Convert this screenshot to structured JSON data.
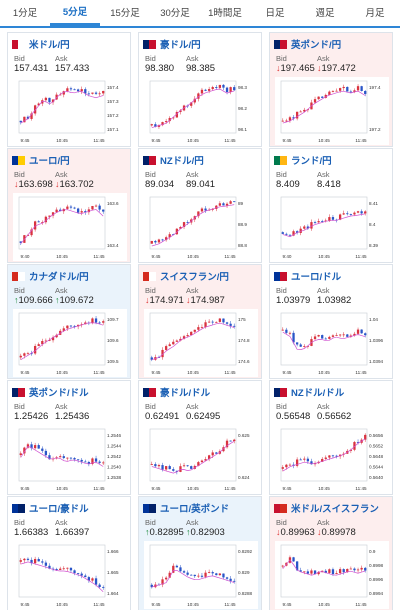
{
  "tabs": [
    "1分足",
    "5分足",
    "15分足",
    "30分足",
    "1時間足",
    "日足",
    "週足",
    "月足"
  ],
  "active_tab": 1,
  "labels": {
    "bid": "Bid",
    "ask": "Ask"
  },
  "colors": {
    "accent": "#2e86d6",
    "up": "#1a8a3a",
    "down": "#d33333",
    "candle_up": "#d9333f",
    "candle_down": "#2a55c8",
    "ma_line": "#d050d0"
  },
  "cards": [
    {
      "pair": "米ドル/円",
      "flags": [
        "#c8102e",
        "#ffffff"
      ],
      "bid": "157.431",
      "ask": "157.433",
      "dir": "",
      "bg": "",
      "x_ticks": [
        "9:45",
        "10:45",
        "11:45"
      ],
      "y_ticks": [
        "157.4",
        "157.3",
        "157.2",
        "157.1"
      ],
      "trend": [
        0.2,
        0.3,
        0.5,
        0.7,
        0.6,
        0.8,
        0.9,
        0.85,
        0.9,
        0.8,
        0.75,
        0.8
      ]
    },
    {
      "pair": "豪ドル/円",
      "flags": [
        "#012169",
        "#c8102e"
      ],
      "bid": "98.380",
      "ask": "98.385",
      "dir": "",
      "bg": "",
      "x_ticks": [
        "9:45",
        "10:45",
        "11:45"
      ],
      "y_ticks": [
        "98.3",
        "98.2",
        "98.1"
      ],
      "trend": [
        0.1,
        0.15,
        0.2,
        0.35,
        0.5,
        0.6,
        0.75,
        0.85,
        0.9,
        0.95,
        0.85,
        0.9
      ]
    },
    {
      "pair": "英ポンド/円",
      "flags": [
        "#012169",
        "#c8102e"
      ],
      "bid": "197.465",
      "ask": "197.472",
      "dir": "down",
      "bg": "red",
      "x_ticks": [
        "9:45",
        "10:45",
        "11:45"
      ],
      "y_ticks": [
        "197.4",
        "197.2"
      ],
      "trend": [
        0.2,
        0.25,
        0.35,
        0.45,
        0.6,
        0.7,
        0.8,
        0.85,
        0.9,
        0.85,
        0.9,
        0.8
      ]
    },
    {
      "pair": "ユーロ/円",
      "flags": [
        "#003399",
        "#ffcc00"
      ],
      "bid": "163.698",
      "ask": "163.702",
      "dir": "down",
      "bg": "red",
      "x_ticks": [
        "9:40",
        "10:45",
        "11:45"
      ],
      "y_ticks": [
        "163.6",
        "163.4"
      ],
      "trend": [
        0.1,
        0.3,
        0.5,
        0.55,
        0.7,
        0.8,
        0.85,
        0.8,
        0.75,
        0.8,
        0.85,
        0.7
      ]
    },
    {
      "pair": "NZドル/円",
      "flags": [
        "#012169",
        "#c8102e"
      ],
      "bid": "89.034",
      "ask": "89.041",
      "dir": "",
      "bg": "",
      "x_ticks": [
        "9:45",
        "10:45",
        "11:45"
      ],
      "y_ticks": [
        "89",
        "88.9",
        "88.8"
      ],
      "trend": [
        0.05,
        0.1,
        0.2,
        0.3,
        0.45,
        0.55,
        0.7,
        0.8,
        0.85,
        0.9,
        0.92,
        0.95
      ]
    },
    {
      "pair": "ランド/円",
      "flags": [
        "#007a4d",
        "#ffb612"
      ],
      "bid": "8.409",
      "ask": "8.418",
      "dir": "",
      "bg": "",
      "x_ticks": [
        "9:40",
        "10:45",
        "11:45"
      ],
      "y_ticks": [
        "8.41",
        "8.4",
        "8.39"
      ],
      "trend": [
        0.3,
        0.25,
        0.35,
        0.4,
        0.5,
        0.55,
        0.6,
        0.6,
        0.65,
        0.7,
        0.72,
        0.75
      ]
    },
    {
      "pair": "カナダドル/円",
      "flags": [
        "#d52b1e",
        "#ffffff"
      ],
      "bid": "109.666",
      "ask": "109.672",
      "dir": "up",
      "bg": "blue",
      "x_ticks": [
        "9:45",
        "10:45",
        "11:45"
      ],
      "y_ticks": [
        "109.7",
        "109.6",
        "109.5"
      ],
      "trend": [
        0.1,
        0.2,
        0.3,
        0.45,
        0.55,
        0.65,
        0.75,
        0.8,
        0.85,
        0.9,
        0.9,
        0.85
      ]
    },
    {
      "pair": "スイスフラン/円",
      "flags": [
        "#d52b1e",
        "#ffffff"
      ],
      "bid": "174.971",
      "ask": "174.987",
      "dir": "down",
      "bg": "red",
      "x_ticks": [
        "9:45",
        "10:45",
        "11:45"
      ],
      "y_ticks": [
        "175",
        "174.8",
        "174.6"
      ],
      "trend": [
        0.1,
        0.15,
        0.3,
        0.4,
        0.55,
        0.6,
        0.7,
        0.8,
        0.85,
        0.9,
        0.85,
        0.8
      ]
    },
    {
      "pair": "ユーロ/ドル",
      "flags": [
        "#003399",
        "#c8102e"
      ],
      "bid": "1.03979",
      "ask": "1.03982",
      "dir": "",
      "bg": "",
      "x_ticks": [
        "9:45",
        "10:45",
        "11:45"
      ],
      "y_ticks": [
        "1.04",
        "1.0396",
        "1.0394"
      ],
      "trend": [
        0.7,
        0.6,
        0.3,
        0.35,
        0.5,
        0.55,
        0.5,
        0.6,
        0.55,
        0.6,
        0.65,
        0.6
      ]
    },
    {
      "pair": "英ポンド/ドル",
      "flags": [
        "#012169",
        "#c8102e"
      ],
      "bid": "1.25426",
      "ask": "1.25436",
      "dir": "",
      "bg": "",
      "x_ticks": [
        "9:45",
        "10:45",
        "11:45"
      ],
      "y_ticks": [
        "1.2546",
        "1.2544",
        "1.2542",
        "1.2540",
        "1.2538"
      ],
      "trend": [
        0.5,
        0.75,
        0.65,
        0.55,
        0.45,
        0.5,
        0.4,
        0.45,
        0.4,
        0.35,
        0.4,
        0.3
      ]
    },
    {
      "pair": "豪ドル/ドル",
      "flags": [
        "#012169",
        "#c8102e"
      ],
      "bid": "0.62491",
      "ask": "0.62495",
      "dir": "",
      "bg": "",
      "x_ticks": [
        "9:45",
        "10:45",
        "11:45"
      ],
      "y_ticks": [
        "0.625",
        "0.624"
      ],
      "trend": [
        0.3,
        0.25,
        0.2,
        0.15,
        0.25,
        0.2,
        0.3,
        0.4,
        0.5,
        0.6,
        0.75,
        0.85
      ]
    },
    {
      "pair": "NZドル/ドル",
      "flags": [
        "#012169",
        "#c8102e"
      ],
      "bid": "0.56548",
      "ask": "0.56562",
      "dir": "",
      "bg": "",
      "x_ticks": [
        "9:45",
        "10:45",
        "11:45"
      ],
      "y_ticks": [
        "0.5656",
        "0.5652",
        "0.5648",
        "0.5644",
        "0.5640"
      ],
      "trend": [
        0.2,
        0.3,
        0.35,
        0.4,
        0.35,
        0.4,
        0.45,
        0.5,
        0.55,
        0.65,
        0.8,
        0.9
      ]
    },
    {
      "pair": "ユーロ/豪ドル",
      "flags": [
        "#003399",
        "#012169"
      ],
      "bid": "1.66383",
      "ask": "1.66397",
      "dir": "",
      "bg": "",
      "x_ticks": [
        "9:45",
        "10:45",
        "11:45"
      ],
      "y_ticks": [
        "1.666",
        "1.665",
        "1.664"
      ],
      "trend": [
        0.7,
        0.75,
        0.7,
        0.65,
        0.6,
        0.55,
        0.55,
        0.5,
        0.45,
        0.35,
        0.25,
        0.1
      ]
    },
    {
      "pair": "ユーロ/英ポンド",
      "flags": [
        "#003399",
        "#012169"
      ],
      "bid": "0.82895",
      "ask": "0.82903",
      "dir": "up",
      "bg": "blue",
      "x_ticks": [
        "9:45",
        "10:45",
        "11:45"
      ],
      "y_ticks": [
        "0.8292",
        "0.829",
        "0.8288"
      ],
      "trend": [
        0.2,
        0.25,
        0.3,
        0.6,
        0.5,
        0.4,
        0.35,
        0.4,
        0.45,
        0.4,
        0.35,
        0.3
      ]
    },
    {
      "pair": "米ドル/スイスフラン",
      "flags": [
        "#c8102e",
        "#d52b1e"
      ],
      "bid": "0.89963",
      "ask": "0.89978",
      "dir": "down",
      "bg": "red",
      "x_ticks": [
        "9:45",
        "10:45",
        "11:45"
      ],
      "y_ticks": [
        "0.9",
        "0.8998",
        "0.8996",
        "0.8994"
      ],
      "trend": [
        0.6,
        0.8,
        0.55,
        0.5,
        0.45,
        0.55,
        0.5,
        0.45,
        0.5,
        0.55,
        0.5,
        0.55
      ]
    }
  ]
}
